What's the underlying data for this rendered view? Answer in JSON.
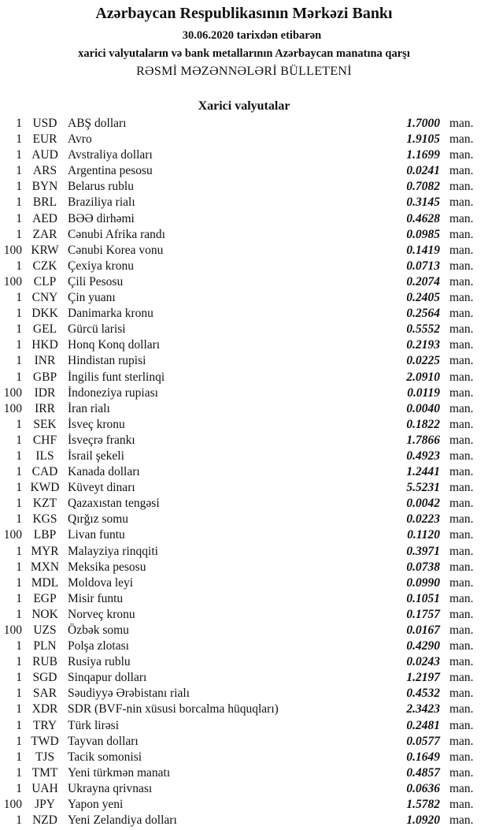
{
  "header": {
    "title": "Azərbaycan Respublikasının Mərkəzi Bankı",
    "date_line": "30.06.2020  tarixdən etibarən",
    "subtitle": "xarici valyutaların və bank metallarının Azərbaycan manatına qarşı",
    "bulletin": "RƏSMİ MƏZƏNNƏLƏRİ BÜLLETENİ"
  },
  "section_title": "Xarici valyutalar",
  "unit": "man.",
  "rates": [
    {
      "amount": "1",
      "code": "USD",
      "name": "ABŞ dolları",
      "rate": "1.7000"
    },
    {
      "amount": "1",
      "code": "EUR",
      "name": "Avro",
      "rate": "1.9105"
    },
    {
      "amount": "1",
      "code": "AUD",
      "name": "Avstraliya dolları",
      "rate": "1.1699"
    },
    {
      "amount": "1",
      "code": "ARS",
      "name": "Argentina pesosu",
      "rate": "0.0241"
    },
    {
      "amount": "1",
      "code": "BYN",
      "name": "Belarus rublu",
      "rate": "0.7082"
    },
    {
      "amount": "1",
      "code": "BRL",
      "name": "Braziliya rialı",
      "rate": "0.3145"
    },
    {
      "amount": "1",
      "code": "AED",
      "name": "BƏƏ dirhəmi",
      "rate": "0.4628"
    },
    {
      "amount": "1",
      "code": "ZAR",
      "name": "Cənubi Afrika randı",
      "rate": "0.0985"
    },
    {
      "amount": "100",
      "code": "KRW",
      "name": "Cənubi Korea vonu",
      "rate": "0.1419"
    },
    {
      "amount": "1",
      "code": "CZK",
      "name": "Çexiya kronu",
      "rate": "0.0713"
    },
    {
      "amount": "100",
      "code": "CLP",
      "name": "Çili Pesosu",
      "rate": "0.2074"
    },
    {
      "amount": "1",
      "code": "CNY",
      "name": "Çin yuanı",
      "rate": "0.2405"
    },
    {
      "amount": "1",
      "code": "DKK",
      "name": "Danimarka kronu",
      "rate": "0.2564"
    },
    {
      "amount": "1",
      "code": "GEL",
      "name": "Gürcü larisi",
      "rate": "0.5552"
    },
    {
      "amount": "1",
      "code": "HKD",
      "name": "Honq Konq dolları",
      "rate": "0.2193"
    },
    {
      "amount": "1",
      "code": "INR",
      "name": "Hindistan rupisi",
      "rate": "0.0225"
    },
    {
      "amount": "1",
      "code": "GBP",
      "name": "İngilis funt sterlinqi",
      "rate": "2.0910"
    },
    {
      "amount": "100",
      "code": "IDR",
      "name": "İndoneziya rupiası",
      "rate": "0.0119"
    },
    {
      "amount": "100",
      "code": "IRR",
      "name": "İran rialı",
      "rate": "0.0040"
    },
    {
      "amount": "1",
      "code": "SEK",
      "name": "İsveç kronu",
      "rate": "0.1822"
    },
    {
      "amount": "1",
      "code": "CHF",
      "name": "İsveçrə frankı",
      "rate": "1.7866"
    },
    {
      "amount": "1",
      "code": "ILS",
      "name": "İsrail şekeli",
      "rate": "0.4923"
    },
    {
      "amount": "1",
      "code": "CAD",
      "name": "Kanada dolları",
      "rate": "1.2441"
    },
    {
      "amount": "1",
      "code": "KWD",
      "name": "Küveyt dinarı",
      "rate": "5.5231"
    },
    {
      "amount": "1",
      "code": "KZT",
      "name": "Qazaxıstan tengəsi",
      "rate": "0.0042"
    },
    {
      "amount": "1",
      "code": "KGS",
      "name": "Qırğız somu",
      "rate": "0.0223"
    },
    {
      "amount": "100",
      "code": "LBP",
      "name": "Livan funtu",
      "rate": "0.1120"
    },
    {
      "amount": "1",
      "code": "MYR",
      "name": "Malayziya rinqqiti",
      "rate": "0.3971"
    },
    {
      "amount": "1",
      "code": "MXN",
      "name": "Meksika pesosu",
      "rate": "0.0738"
    },
    {
      "amount": "1",
      "code": "MDL",
      "name": "Moldova leyi",
      "rate": "0.0990"
    },
    {
      "amount": "1",
      "code": "EGP",
      "name": "Misir funtu",
      "rate": "0.1051"
    },
    {
      "amount": "1",
      "code": "NOK",
      "name": "Norveç kronu",
      "rate": "0.1757"
    },
    {
      "amount": "100",
      "code": "UZS",
      "name": "Özbək somu",
      "rate": "0.0167"
    },
    {
      "amount": "1",
      "code": "PLN",
      "name": "Polşa zlotası",
      "rate": "0.4290"
    },
    {
      "amount": "1",
      "code": "RUB",
      "name": "Rusiya rublu",
      "rate": "0.0243"
    },
    {
      "amount": "1",
      "code": "SGD",
      "name": "Sinqapur dolları",
      "rate": "1.2197"
    },
    {
      "amount": "1",
      "code": "SAR",
      "name": "Səudiyyə Ərəbistanı rialı",
      "rate": "0.4532"
    },
    {
      "amount": "1",
      "code": "XDR",
      "name": "SDR (BVF-nin xüsusi borcalma hüquqları)",
      "rate": "2.3423"
    },
    {
      "amount": "1",
      "code": "TRY",
      "name": "Türk lirəsi",
      "rate": "0.2481"
    },
    {
      "amount": "1",
      "code": "TWD",
      "name": "Tayvan dolları",
      "rate": "0.0577"
    },
    {
      "amount": "1",
      "code": "TJS",
      "name": "Tacik somonisi",
      "rate": "0.1649"
    },
    {
      "amount": "1",
      "code": "TMT",
      "name": "Yeni türkmən manatı",
      "rate": "0.4857"
    },
    {
      "amount": "1",
      "code": "UAH",
      "name": "Ukrayna qrivnası",
      "rate": "0.0636"
    },
    {
      "amount": "100",
      "code": "JPY",
      "name": "Yapon yeni",
      "rate": "1.5782"
    },
    {
      "amount": "1",
      "code": "NZD",
      "name": "Yeni Zelandiya dolları",
      "rate": "1.0920"
    }
  ]
}
